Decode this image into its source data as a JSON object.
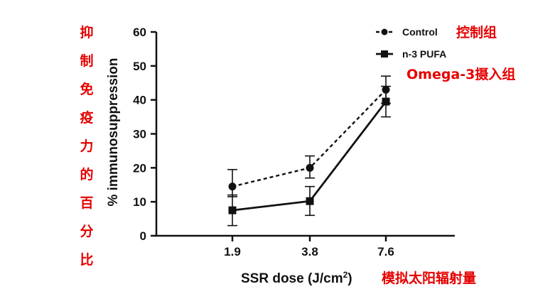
{
  "chart_data": {
    "type": "line",
    "xlabel": "SSR dose (J/cm",
    "xlabel_sup": "2",
    "xlabel_close": ")",
    "ylabel": "% immunosuppression",
    "categories": [
      "1.9",
      "3.8",
      "7.6"
    ],
    "ylim": [
      0,
      60
    ],
    "yticks": [
      "0",
      "10",
      "20",
      "30",
      "40",
      "50",
      "60"
    ],
    "grid": false,
    "legend_position": "top-right",
    "series": [
      {
        "name": "Control",
        "marker": "circle",
        "line_style": "dashed",
        "values": [
          14.5,
          20,
          43
        ],
        "err_low": [
          11.5,
          17,
          39
        ],
        "err_high": [
          19.5,
          23.5,
          47
        ]
      },
      {
        "name": "n-3 PUFA",
        "marker": "square",
        "line_style": "solid",
        "values": [
          7.5,
          10.2,
          39.5
        ],
        "err_low": [
          3,
          6,
          35
        ],
        "err_high": [
          12,
          14.5,
          44
        ]
      }
    ]
  },
  "annotations": {
    "color": "#e60000",
    "control_cn": "控制组",
    "omega_cn": "Omega-3摄入组",
    "x_cn": "模拟太阳辐射量",
    "y_cn": [
      "抑",
      "制",
      "免",
      "疫",
      "力",
      "的",
      "百",
      "分",
      "比"
    ]
  }
}
